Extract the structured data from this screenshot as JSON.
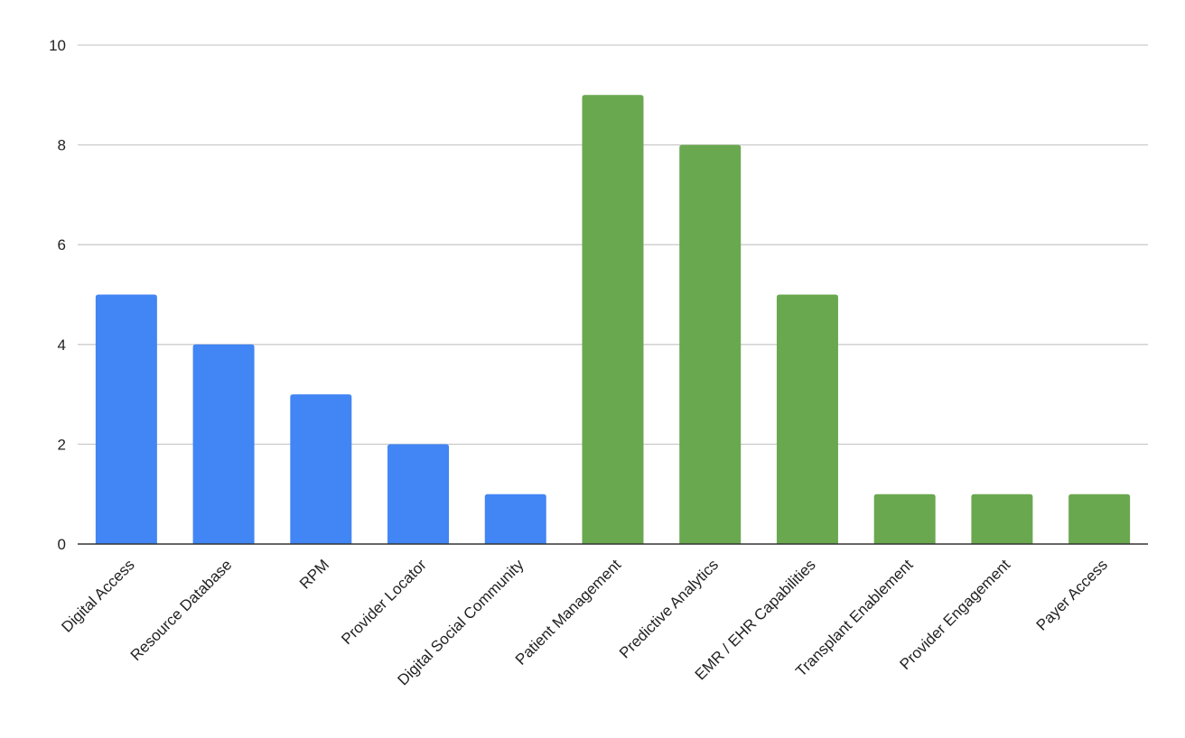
{
  "chart_data": {
    "type": "bar",
    "title": "",
    "xlabel": "",
    "ylabel": "",
    "ylim": [
      0,
      10
    ],
    "yticks": [
      0,
      2,
      4,
      6,
      8,
      10
    ],
    "grid": true,
    "legend": "none",
    "categories": [
      "Digital Access",
      "Resource Database",
      "RPM",
      "Provider Locator",
      "Digital Social Community",
      "Patient Management",
      "Predictive Analytics",
      "EMR / EHR Capabilities",
      "Transplant Enablement",
      "Provider Engagement",
      "Payer Access"
    ],
    "values": [
      5,
      4,
      3,
      2,
      1,
      9,
      8,
      5,
      1,
      1,
      1
    ],
    "bar_colors": [
      "#4285f4",
      "#4285f4",
      "#4285f4",
      "#4285f4",
      "#4285f4",
      "#6aa84f",
      "#6aa84f",
      "#6aa84f",
      "#6aa84f",
      "#6aa84f",
      "#6aa84f"
    ]
  }
}
